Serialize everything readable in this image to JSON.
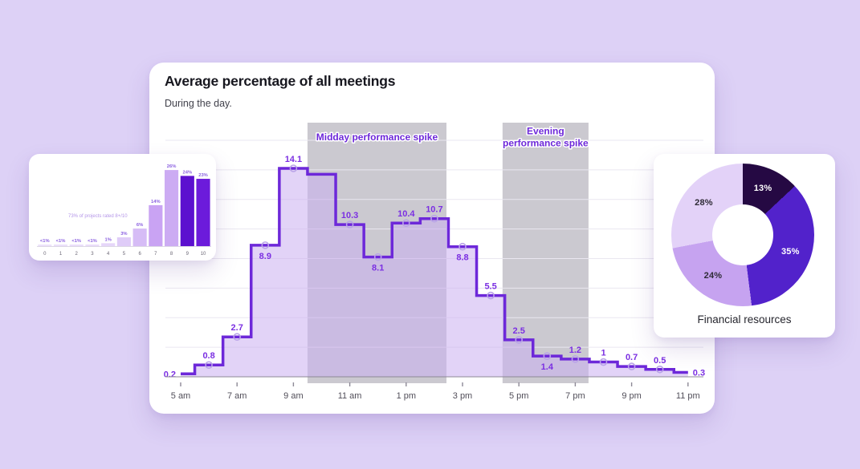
{
  "page_background": "#ddd1f6",
  "chart_data": [
    {
      "type": "area",
      "style": "step",
      "title": "Average percentage of all meetings",
      "subtitle": "During the day.",
      "x_tick_labels": [
        "5 am",
        "7 am",
        "9 am",
        "11 am",
        "1 pm",
        "3 pm",
        "5 pm",
        "7 pm",
        "9 pm",
        "11 pm"
      ],
      "x_hours": [
        5,
        6,
        7,
        8,
        9,
        10,
        11,
        12,
        13,
        14,
        15,
        16,
        17,
        18,
        19,
        20,
        21,
        22,
        23
      ],
      "values": [
        0.2,
        0.8,
        2.7,
        8.9,
        14.1,
        13.7,
        10.3,
        8.1,
        10.4,
        10.7,
        8.8,
        5.5,
        2.5,
        1.4,
        1.2,
        1.0,
        0.7,
        0.5,
        0.3
      ],
      "point_labels": [
        "0.2",
        "0.8",
        "2.7",
        "8.9",
        "14.1",
        "",
        "10.3",
        "8.1",
        "10.4",
        "10.7",
        "8.8",
        "5.5",
        "2.5",
        "1.4",
        "1.2",
        "1",
        "0.7",
        "0.5",
        "0.3"
      ],
      "label_positions": [
        "left",
        "above",
        "above",
        "below",
        "above",
        "hidden",
        "above",
        "below",
        "above",
        "above",
        "below",
        "above",
        "above",
        "below",
        "above",
        "above",
        "above",
        "above",
        "right"
      ],
      "ylim": [
        0,
        17.6
      ],
      "grid_step": 2,
      "grid": true,
      "line_color": "#6d28d9",
      "area_fill_color": "rgba(203,174,240,0.55)",
      "point_label_color": "#7b2fe2",
      "marker_stroke_color": "#b9a3e8",
      "bands": [
        {
          "label_lines": [
            "Midday performance spike"
          ],
          "from_hour": 9.5,
          "to_hour": 14.43
        },
        {
          "label_lines": [
            "Evening",
            "performance spike"
          ],
          "from_hour": 16.42,
          "to_hour": 19.47
        }
      ],
      "band_fill_color": "rgba(82,76,98,0.3)",
      "band_label_color": "#6d28d9",
      "axis_color": "#8d8996",
      "tick_label_color": "#514e59"
    },
    {
      "type": "bar",
      "categories": [
        "0",
        "1",
        "2",
        "3",
        "4",
        "5",
        "6",
        "7",
        "8",
        "9",
        "10"
      ],
      "values": [
        0.5,
        0.5,
        0.5,
        0.5,
        1,
        3,
        6,
        14,
        26,
        24,
        23
      ],
      "value_labels": [
        "<1%",
        "<1%",
        "<1%",
        "<1%",
        "1%",
        "3%",
        "6%",
        "14%",
        "26%",
        "24%",
        "23%"
      ],
      "caption": "73% of projects rated 8+/10",
      "bar_colors": [
        "#ece2fa",
        "#ebe0fa",
        "#eadefa",
        "#e9dcf9",
        "#e5d6f9",
        "#dfccf8",
        "#d6bcf6",
        "#c9a3f3",
        "#ccabf3",
        "#5c10cf",
        "#6c1bdb"
      ],
      "value_label_color": "#8a5fe0",
      "caption_color": "#b495e8",
      "tick_label_color": "#6b6775"
    },
    {
      "type": "pie",
      "donut": true,
      "title": "Financial resources",
      "start_angle_deg": 0,
      "direction": "clockwise",
      "slices": [
        {
          "label": "13%",
          "value": 13,
          "color": "#250943",
          "label_color": "#ffffff"
        },
        {
          "label": "35%",
          "value": 35,
          "color": "#5222cb",
          "label_color": "#ffffff"
        },
        {
          "label": "24%",
          "value": 24,
          "color": "#c6a3f0",
          "label_color": "#2e2b36"
        },
        {
          "label": "28%",
          "value": 28,
          "color": "#e3d2f8",
          "label_color": "#2e2b36"
        }
      ]
    }
  ]
}
